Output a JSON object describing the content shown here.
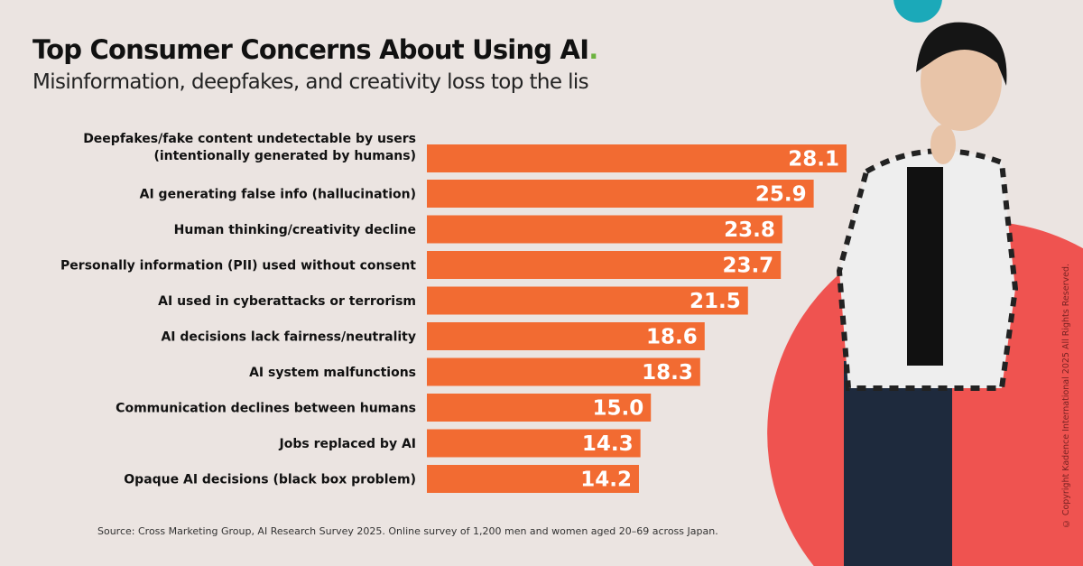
{
  "title": "Top Consumer Concerns About Using AI",
  "title_dot": ".",
  "subtitle": "Misinformation, deepfakes, and creativity loss top the lis",
  "source": "Source: Cross Marketing Group, AI Research Survey 2025. Online survey of 1,200 men and women aged 20–69 across Japan.",
  "copyright": "© Copyright Kadence International 2025 All Rights Reserved.",
  "colors": {
    "background": "#ebe4e1",
    "bar": "#f26b32",
    "accent_circle": "#ef5350",
    "teal_circle": "#1ba9b9",
    "title_dot": "#6cb33f"
  },
  "chart_data": {
    "type": "bar",
    "orientation": "horizontal",
    "categories": [
      [
        "Deepfakes/fake content undetectable by users",
        "(intentionally generated by humans)"
      ],
      [
        "AI generating false info (hallucination)"
      ],
      [
        "Human thinking/creativity decline"
      ],
      [
        "Personally information (PII) used without consent"
      ],
      [
        "AI used in cyberattacks or terrorism"
      ],
      [
        "AI decisions lack fairness/neutrality"
      ],
      [
        "AI system malfunctions"
      ],
      [
        "Communication declines between humans"
      ],
      [
        "Jobs replaced by AI"
      ],
      [
        "Opaque AI decisions (black box problem)"
      ]
    ],
    "values": [
      28.1,
      25.9,
      23.8,
      23.7,
      21.5,
      18.6,
      18.3,
      15.0,
      14.3,
      14.2
    ],
    "value_labels": [
      "28.1",
      "25.9",
      "23.8",
      "23.7",
      "21.5",
      "18.6",
      "18.3",
      "15.0",
      "14.3",
      "14.2"
    ],
    "xlim": [
      0,
      28.1
    ],
    "grid": false,
    "legend": "none"
  }
}
